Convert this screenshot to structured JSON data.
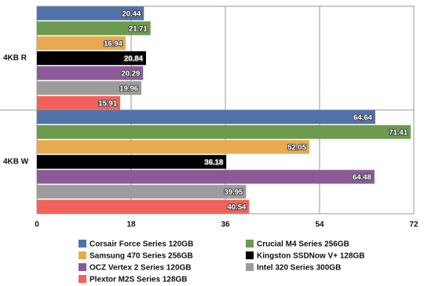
{
  "chart_data": {
    "type": "bar",
    "orientation": "horizontal",
    "categories": [
      "4KB R",
      "4KB W"
    ],
    "series": [
      {
        "name": "Corsair Force Series 120GB",
        "color": "#4f73a8",
        "values": [
          20.44,
          64.64
        ]
      },
      {
        "name": "Crucial M4 Series 256GB",
        "color": "#6c9a4e",
        "values": [
          21.71,
          71.41
        ]
      },
      {
        "name": "Samsung 470 Series 256GB",
        "color": "#e8aa4e",
        "values": [
          16.94,
          52.05
        ]
      },
      {
        "name": "Kingston SSDNow V+ 128GB",
        "color": "#000000",
        "values": [
          20.84,
          36.18
        ]
      },
      {
        "name": "OCZ Vertex 2 Series 120GB",
        "color": "#8a5a98",
        "values": [
          20.29,
          64.48
        ]
      },
      {
        "name": "Intel 320 Series 300GB",
        "color": "#9c9c9c",
        "values": [
          19.96,
          39.95
        ]
      },
      {
        "name": "Plextor M2S Series 128GB",
        "color": "#f2625a",
        "values": [
          15.91,
          40.54
        ]
      }
    ],
    "xlim": [
      0,
      72
    ],
    "xticks": [
      0,
      18,
      36,
      54,
      72
    ],
    "grid": true
  }
}
